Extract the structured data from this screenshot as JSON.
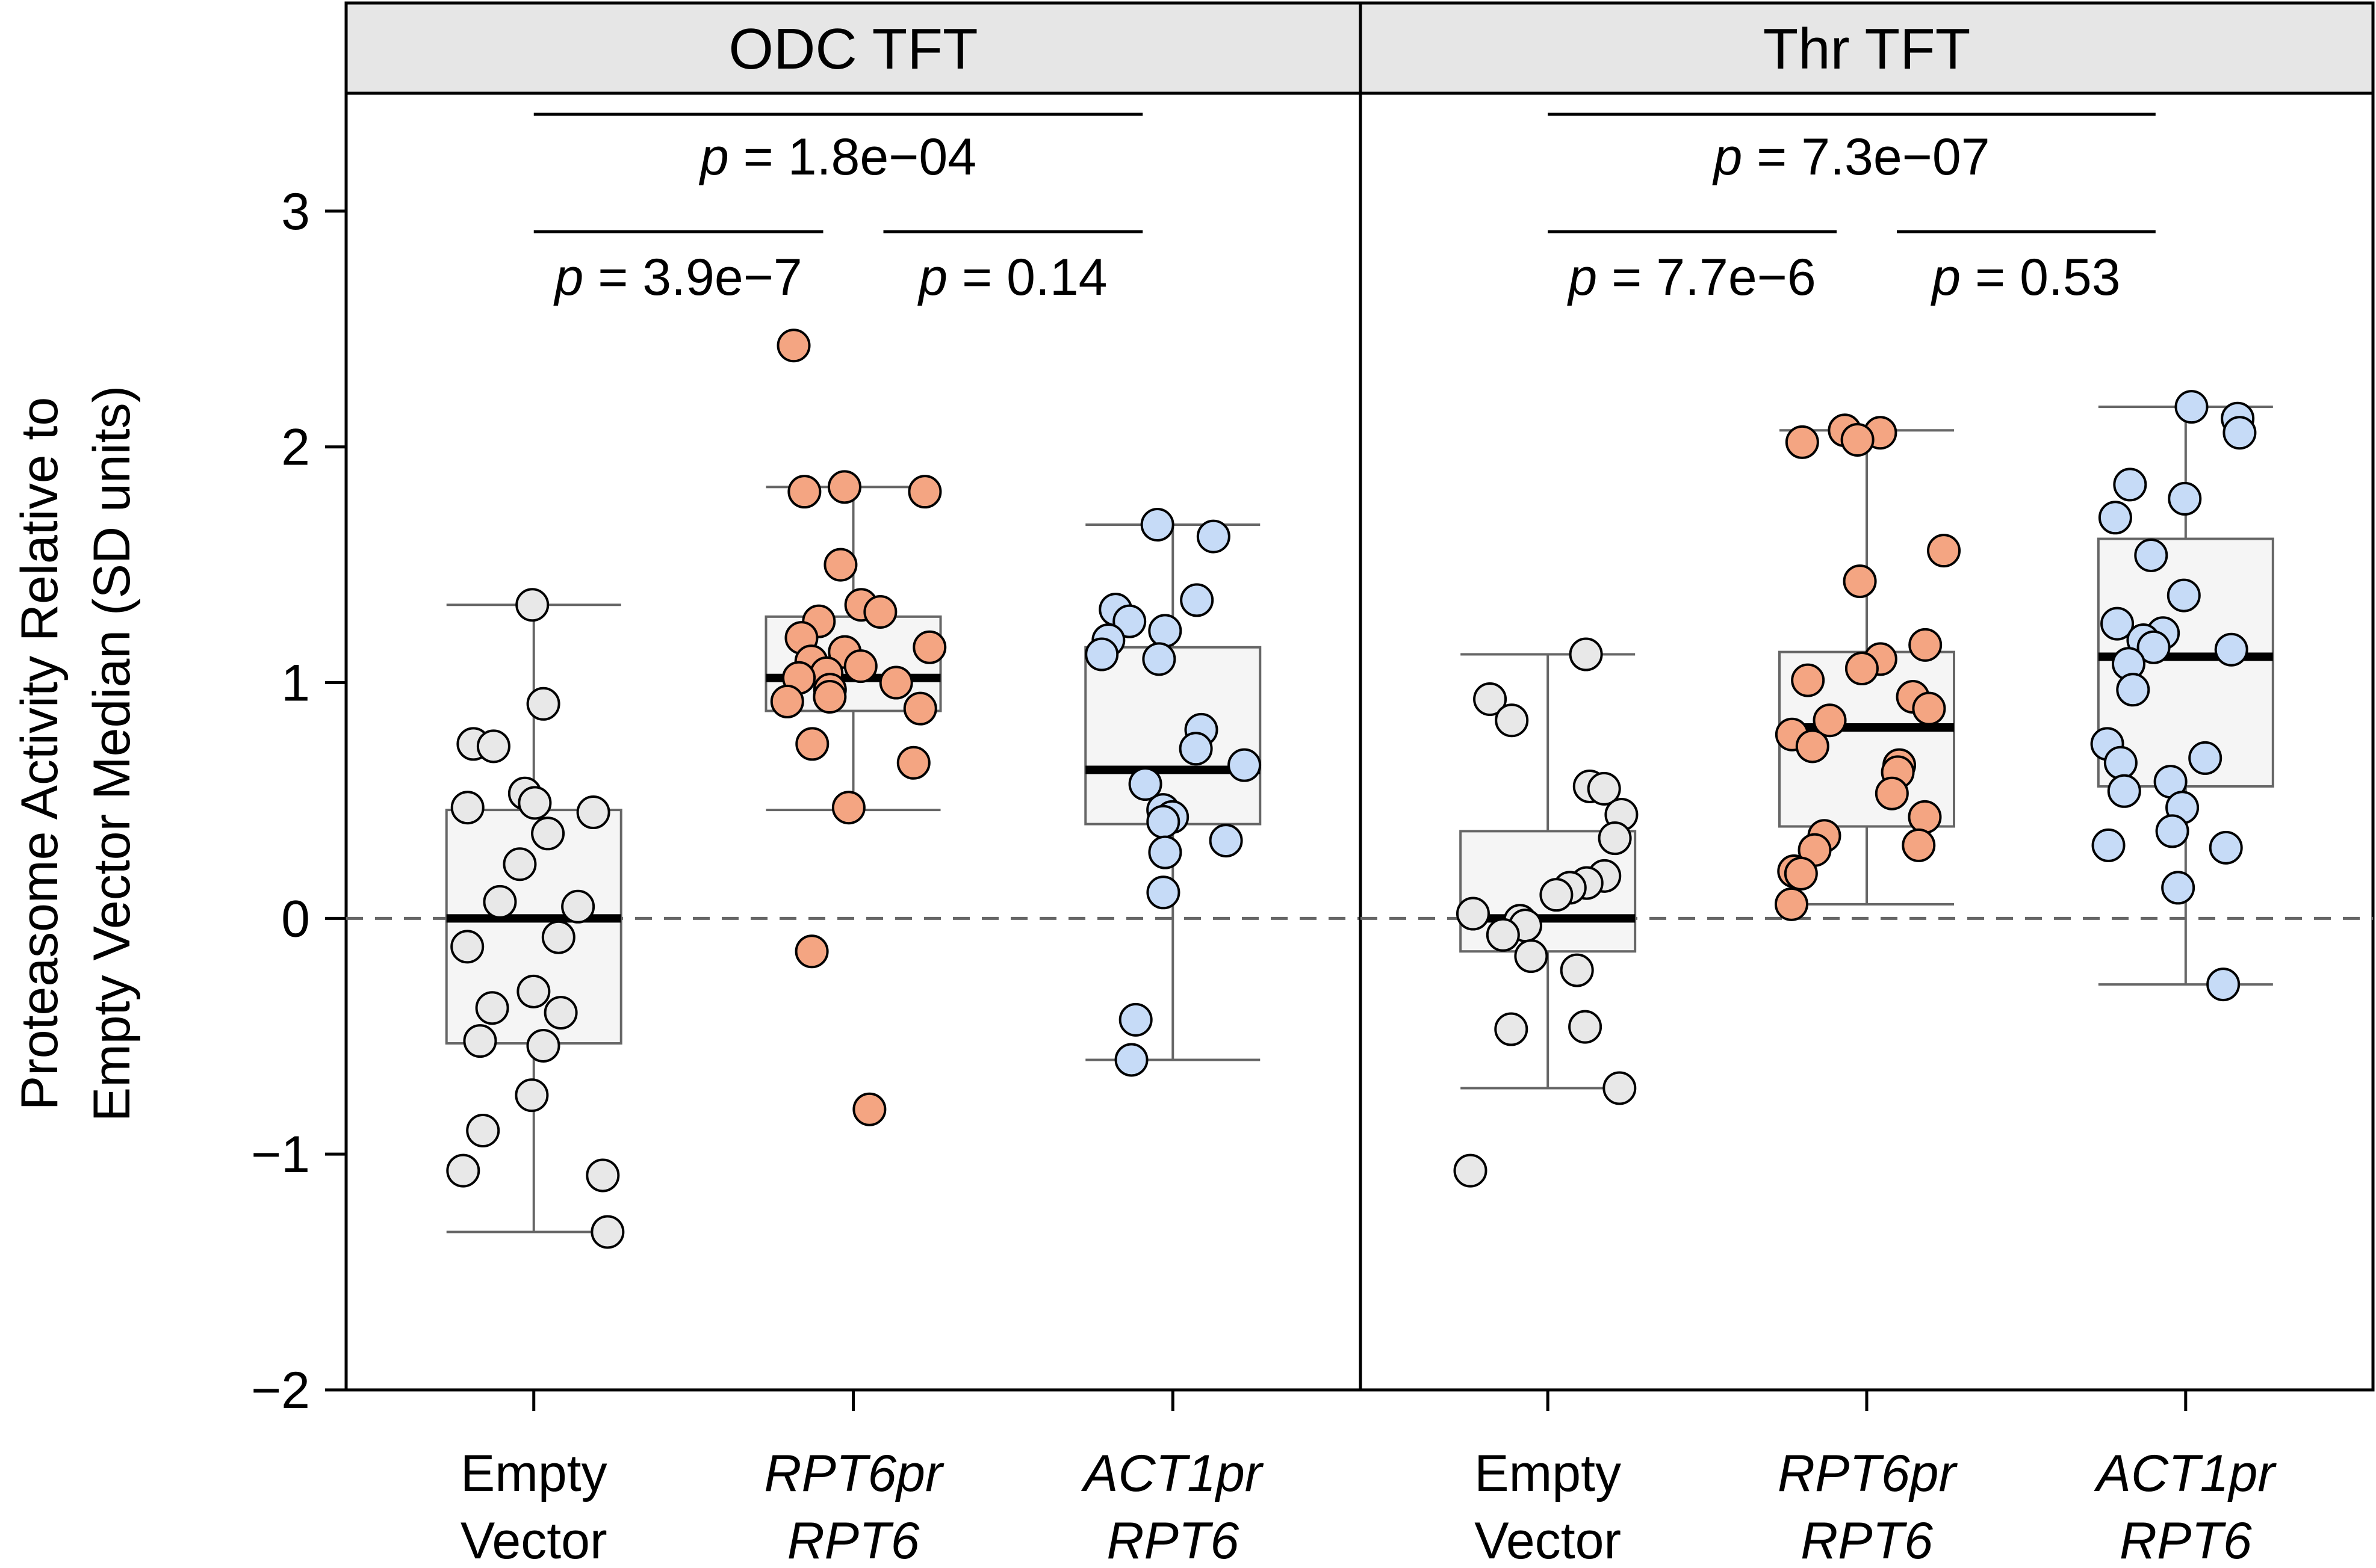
{
  "chart_data": {
    "type": "box",
    "ylabel_lines": [
      "Proteasome Activity Relative to",
      "Empty Vector Median (SD units)"
    ],
    "ylim": [
      -2,
      3.5
    ],
    "yticks": [
      -2,
      -1,
      0,
      1,
      2,
      3
    ],
    "ytick_labels": [
      "−2",
      "−1",
      "0",
      "1",
      "2",
      "3"
    ],
    "reference_line": 0,
    "categories": [
      {
        "line1": "Empty",
        "line2": "Vector",
        "italic": false
      },
      {
        "line1": "RPT6pr",
        "line2": "RPT6",
        "italic": true
      },
      {
        "line1": "ACT1pr",
        "line2": "RPT6",
        "italic": true
      }
    ],
    "colors": {
      "Empty Vector": "#e8e8e8",
      "RPT6pr RPT6": "#f4a582",
      "ACT1pr RPT6": "#c6dbf7",
      "box_fill": "#f5f5f5",
      "strip_fill": "#e6e6e6",
      "box_stroke": "#666666"
    },
    "panels": [
      {
        "title": "ODC TFT",
        "groups": [
          {
            "name": "Empty Vector",
            "whisker_low": -1.33,
            "q1": -0.53,
            "median": 0.0,
            "q3": 0.46,
            "whisker_high": 1.33,
            "points": [
              1.33,
              0.91,
              0.74,
              0.73,
              0.53,
              0.49,
              0.47,
              0.45,
              0.36,
              0.23,
              0.07,
              0.05,
              -0.08,
              -0.12,
              -0.31,
              -0.38,
              -0.4,
              -0.52,
              -0.54,
              -0.75,
              -0.9,
              -1.07,
              -1.09,
              -1.33
            ]
          },
          {
            "name": "RPT6pr RPT6",
            "whisker_low": 0.46,
            "q1": 0.88,
            "median": 1.02,
            "q3": 1.28,
            "whisker_high": 1.83,
            "points": [
              2.43,
              1.83,
              1.81,
              1.81,
              1.5,
              1.33,
              1.3,
              1.26,
              1.19,
              1.15,
              1.13,
              1.09,
              1.07,
              1.04,
              1.02,
              1.0,
              0.97,
              0.94,
              0.92,
              0.89,
              0.74,
              0.66,
              0.47,
              -0.14,
              -0.81
            ]
          },
          {
            "name": "ACT1pr RPT6",
            "whisker_low": -0.6,
            "q1": 0.4,
            "median": 0.63,
            "q3": 1.15,
            "whisker_high": 1.67,
            "points": [
              1.67,
              1.62,
              1.35,
              1.31,
              1.26,
              1.22,
              1.18,
              1.12,
              1.1,
              0.8,
              0.72,
              0.65,
              0.57,
              0.46,
              0.43,
              0.41,
              0.33,
              0.28,
              0.11,
              -0.43,
              -0.6
            ]
          }
        ],
        "comparisons": [
          {
            "label": "1.8e−04",
            "from": 0,
            "to": 2,
            "y": 3.4
          },
          {
            "label": "3.9e−7",
            "from": 0,
            "to": 1,
            "y": 2.9
          },
          {
            "label": "0.14",
            "from": 1,
            "to": 2,
            "y": 2.9
          }
        ]
      },
      {
        "title": "Thr TFT",
        "groups": [
          {
            "name": "Empty Vector",
            "whisker_low": -0.72,
            "q1": -0.14,
            "median": 0.0,
            "q3": 0.37,
            "whisker_high": 1.12,
            "points": [
              1.12,
              0.93,
              0.84,
              0.56,
              0.55,
              0.44,
              0.34,
              0.18,
              0.15,
              0.13,
              0.1,
              0.02,
              -0.01,
              -0.03,
              -0.07,
              -0.16,
              -0.22,
              -0.46,
              -0.47,
              -0.72,
              -1.07
            ]
          },
          {
            "name": "RPT6pr RPT6",
            "whisker_low": 0.06,
            "q1": 0.39,
            "median": 0.81,
            "q3": 1.13,
            "whisker_high": 2.07,
            "points": [
              2.07,
              2.06,
              2.03,
              2.02,
              1.56,
              1.43,
              1.16,
              1.1,
              1.06,
              1.01,
              0.94,
              0.89,
              0.84,
              0.78,
              0.73,
              0.65,
              0.62,
              0.53,
              0.43,
              0.35,
              0.31,
              0.29,
              0.2,
              0.19,
              0.06
            ]
          },
          {
            "name": "ACT1pr RPT6",
            "whisker_low": -0.28,
            "q1": 0.56,
            "median": 1.11,
            "q3": 1.61,
            "whisker_high": 2.17,
            "points": [
              2.17,
              2.12,
              2.06,
              1.84,
              1.78,
              1.7,
              1.54,
              1.37,
              1.25,
              1.21,
              1.18,
              1.15,
              1.14,
              1.08,
              0.97,
              0.74,
              0.68,
              0.66,
              0.58,
              0.54,
              0.47,
              0.37,
              0.31,
              0.3,
              0.13,
              -0.28
            ]
          }
        ],
        "comparisons": [
          {
            "label": "7.3e−07",
            "from": 0,
            "to": 2,
            "y": 3.4
          },
          {
            "label": "7.7e−6",
            "from": 0,
            "to": 1,
            "y": 2.9
          },
          {
            "label": "0.53",
            "from": 1,
            "to": 2,
            "y": 2.9
          }
        ]
      }
    ]
  },
  "p_prefix": "p",
  "p_equals": " = "
}
